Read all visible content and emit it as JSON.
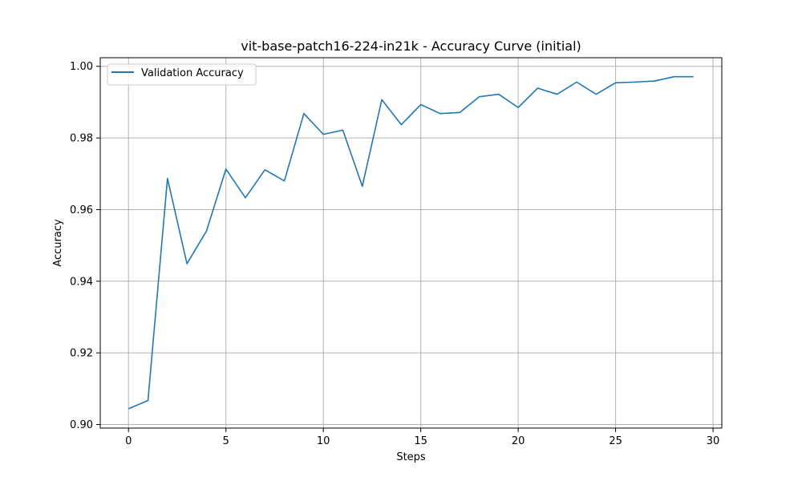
{
  "chart_data": {
    "type": "line",
    "title": "vit-base-patch16-224-in21k - Accuracy Curve (initial)",
    "xlabel": "Steps",
    "ylabel": "Accuracy",
    "xlim": [
      -1.45,
      30.45
    ],
    "ylim": [
      0.899,
      1.0024
    ],
    "xticks": [
      0,
      5,
      10,
      15,
      20,
      25,
      30
    ],
    "yticks": [
      0.9,
      0.92,
      0.94,
      0.96,
      0.98,
      1.0
    ],
    "xtick_labels": [
      "0",
      "5",
      "10",
      "15",
      "20",
      "25",
      "30"
    ],
    "ytick_labels": [
      "0.90",
      "0.92",
      "0.94",
      "0.96",
      "0.98",
      "1.00"
    ],
    "grid": true,
    "legend_position": "upper-left",
    "series": [
      {
        "name": "Validation Accuracy",
        "color": "#1f77b4",
        "x": [
          0,
          1,
          2,
          3,
          4,
          5,
          6,
          7,
          8,
          9,
          10,
          11,
          12,
          13,
          14,
          15,
          16,
          17,
          18,
          19,
          20,
          21,
          22,
          23,
          24,
          25,
          26,
          27,
          28,
          29
        ],
        "y": [
          0.9044,
          0.9067,
          0.9687,
          0.9449,
          0.954,
          0.9713,
          0.9633,
          0.9711,
          0.968,
          0.9868,
          0.981,
          0.9822,
          0.9665,
          0.9907,
          0.9837,
          0.9893,
          0.9868,
          0.9871,
          0.9915,
          0.9922,
          0.9885,
          0.9939,
          0.9922,
          0.9956,
          0.9922,
          0.9954,
          0.9956,
          0.9959,
          0.9971,
          0.9971
        ]
      }
    ]
  }
}
